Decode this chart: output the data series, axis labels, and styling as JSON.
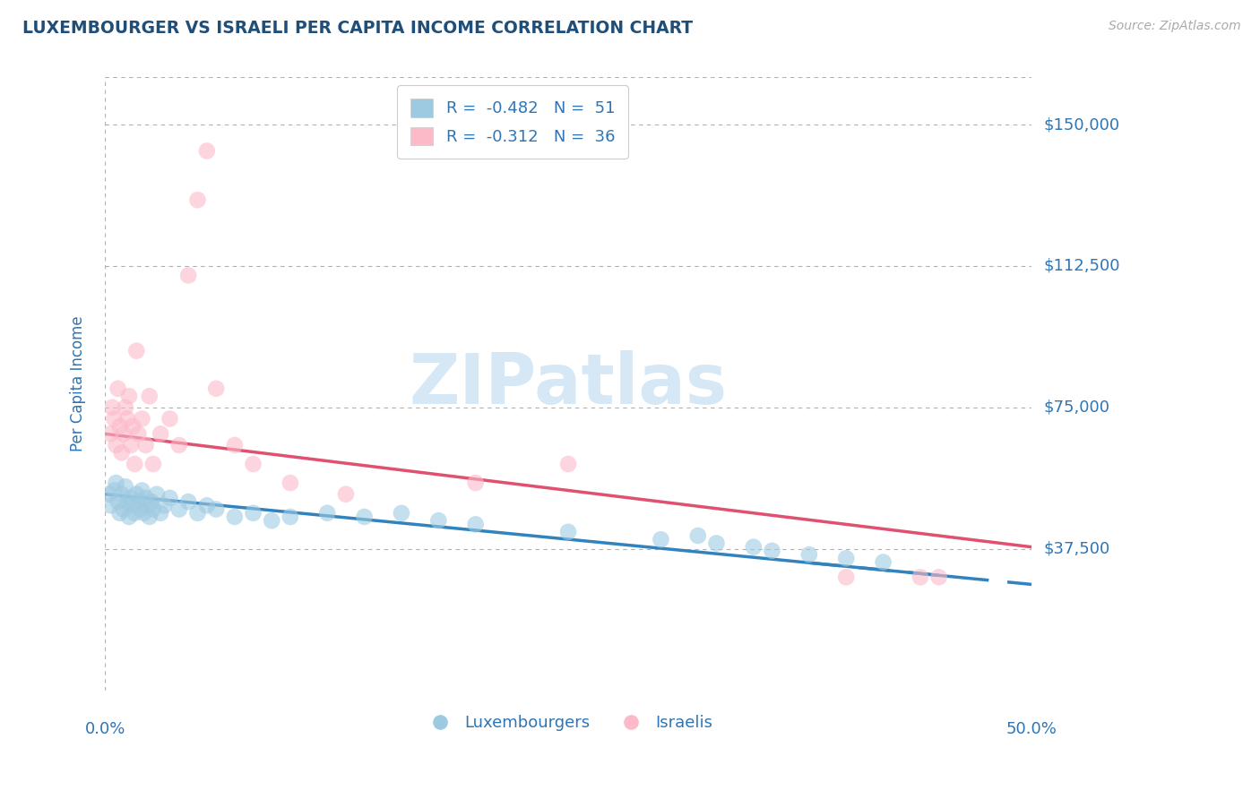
{
  "title": "LUXEMBOURGER VS ISRAELI PER CAPITA INCOME CORRELATION CHART",
  "source": "Source: ZipAtlas.com",
  "ylabel": "Per Capita Income",
  "yticks": [
    0,
    37500,
    75000,
    112500,
    150000
  ],
  "ytick_labels": [
    "",
    "$37,500",
    "$75,000",
    "$112,500",
    "$150,000"
  ],
  "xlim": [
    0.0,
    50.0
  ],
  "ylim": [
    0,
    162500
  ],
  "legend_blue_r": "-0.482",
  "legend_blue_n": "51",
  "legend_pink_r": "-0.312",
  "legend_pink_n": "36",
  "blue_color": "#9ecae1",
  "pink_color": "#fcb9c8",
  "blue_line_color": "#3182bd",
  "pink_line_color": "#e05070",
  "blue_scatter": [
    [
      0.2,
      52000
    ],
    [
      0.3,
      49000
    ],
    [
      0.5,
      53000
    ],
    [
      0.6,
      55000
    ],
    [
      0.7,
      50000
    ],
    [
      0.8,
      47000
    ],
    [
      0.9,
      52000
    ],
    [
      1.0,
      48000
    ],
    [
      1.1,
      54000
    ],
    [
      1.2,
      50000
    ],
    [
      1.3,
      46000
    ],
    [
      1.4,
      51000
    ],
    [
      1.5,
      49000
    ],
    [
      1.6,
      47000
    ],
    [
      1.7,
      52000
    ],
    [
      1.8,
      50000
    ],
    [
      1.9,
      48000
    ],
    [
      2.0,
      53000
    ],
    [
      2.1,
      47000
    ],
    [
      2.2,
      51000
    ],
    [
      2.3,
      49000
    ],
    [
      2.4,
      46000
    ],
    [
      2.5,
      50000
    ],
    [
      2.6,
      48000
    ],
    [
      2.8,
      52000
    ],
    [
      3.0,
      47000
    ],
    [
      3.2,
      49000
    ],
    [
      3.5,
      51000
    ],
    [
      4.0,
      48000
    ],
    [
      4.5,
      50000
    ],
    [
      5.0,
      47000
    ],
    [
      5.5,
      49000
    ],
    [
      6.0,
      48000
    ],
    [
      7.0,
      46000
    ],
    [
      8.0,
      47000
    ],
    [
      9.0,
      45000
    ],
    [
      10.0,
      46000
    ],
    [
      12.0,
      47000
    ],
    [
      14.0,
      46000
    ],
    [
      16.0,
      47000
    ],
    [
      18.0,
      45000
    ],
    [
      20.0,
      44000
    ],
    [
      25.0,
      42000
    ],
    [
      30.0,
      40000
    ],
    [
      32.0,
      41000
    ],
    [
      33.0,
      39000
    ],
    [
      35.0,
      38000
    ],
    [
      36.0,
      37000
    ],
    [
      38.0,
      36000
    ],
    [
      40.0,
      35000
    ],
    [
      42.0,
      34000
    ]
  ],
  "pink_scatter": [
    [
      0.3,
      68000
    ],
    [
      0.4,
      75000
    ],
    [
      0.5,
      72000
    ],
    [
      0.6,
      65000
    ],
    [
      0.7,
      80000
    ],
    [
      0.8,
      70000
    ],
    [
      0.9,
      63000
    ],
    [
      1.0,
      68000
    ],
    [
      1.1,
      75000
    ],
    [
      1.2,
      72000
    ],
    [
      1.3,
      78000
    ],
    [
      1.4,
      65000
    ],
    [
      1.5,
      70000
    ],
    [
      1.6,
      60000
    ],
    [
      1.7,
      90000
    ],
    [
      1.8,
      68000
    ],
    [
      2.0,
      72000
    ],
    [
      2.2,
      65000
    ],
    [
      2.4,
      78000
    ],
    [
      2.6,
      60000
    ],
    [
      3.0,
      68000
    ],
    [
      3.5,
      72000
    ],
    [
      4.0,
      65000
    ],
    [
      4.5,
      110000
    ],
    [
      5.0,
      130000
    ],
    [
      5.5,
      143000
    ],
    [
      6.0,
      80000
    ],
    [
      7.0,
      65000
    ],
    [
      8.0,
      60000
    ],
    [
      10.0,
      55000
    ],
    [
      13.0,
      52000
    ],
    [
      20.0,
      55000
    ],
    [
      25.0,
      60000
    ],
    [
      40.0,
      30000
    ],
    [
      44.0,
      30000
    ],
    [
      45.0,
      30000
    ]
  ],
  "title_color": "#1f4e79",
  "tick_color": "#2e75b6",
  "watermark_color": "#d6e8f5",
  "background_color": "#ffffff",
  "grid_color": "#b0b0b0",
  "blue_line_x0": 0.0,
  "blue_line_y0": 52000,
  "blue_line_x1": 46.0,
  "blue_line_y1": 30000,
  "blue_dash_x0": 38.0,
  "blue_dash_x1": 50.0,
  "pink_line_x0": 0.0,
  "pink_line_y0": 68000,
  "pink_line_x1": 50.0,
  "pink_line_y1": 38000
}
